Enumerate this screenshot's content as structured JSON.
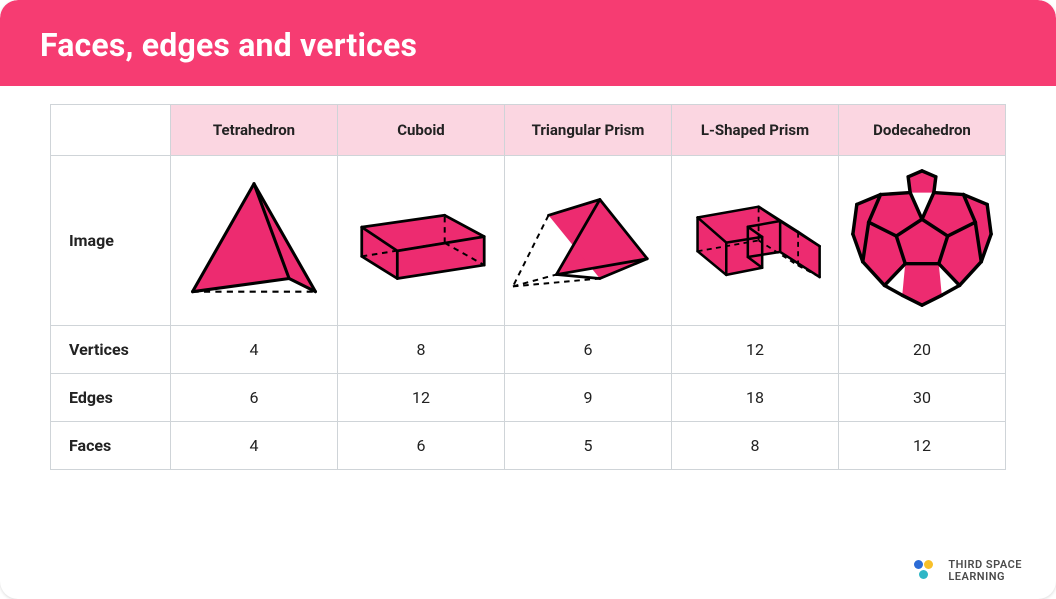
{
  "title": "Faces, edges and vertices",
  "header_bg": "#f63c72",
  "header_text_color": "#ffffff",
  "table_header_bg": "#fbd6e1",
  "shape_fill": "#ed2b70",
  "shape_stroke": "#000000",
  "shape_stroke_width": 3.5,
  "dash_pattern": "7,6",
  "columns": [
    {
      "label": "Tetrahedron",
      "shape": "tetra"
    },
    {
      "label": "Cuboid",
      "shape": "cuboid"
    },
    {
      "label": "Triangular Prism",
      "shape": "triprism"
    },
    {
      "label": "L-Shaped Prism",
      "shape": "lprism"
    },
    {
      "label": "Dodecahedron",
      "shape": "dodeca"
    }
  ],
  "row_labels": {
    "image": "Image",
    "vertices": "Vertices",
    "edges": "Edges",
    "faces": "Faces"
  },
  "data": {
    "vertices": [
      4,
      8,
      6,
      12,
      20
    ],
    "edges": [
      6,
      12,
      9,
      18,
      30
    ],
    "faces": [
      4,
      6,
      5,
      8,
      12
    ]
  },
  "brand": {
    "name_line1": "THIRD SPACE",
    "name_line2": "LEARNING",
    "dot_colors": [
      "#2c6cd6",
      "#f8c02a",
      "#2fb6c6"
    ]
  }
}
